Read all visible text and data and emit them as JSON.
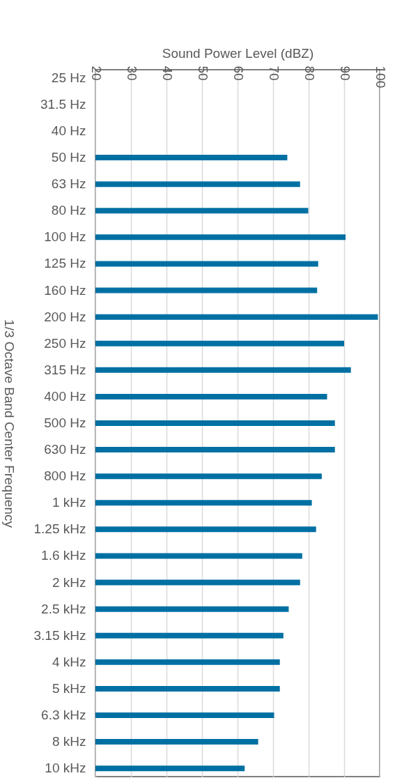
{
  "chart_data": {
    "type": "bar",
    "orientation": "horizontal",
    "xlabel": "Sound Power Level (dBZ)",
    "ylabel": "1/3 Octave Band Center Frequency",
    "categories": [
      "25 Hz",
      "31.5 Hz",
      "40 Hz",
      "50 Hz",
      "63 Hz",
      "80 Hz",
      "100 Hz",
      "125 Hz",
      "160 Hz",
      "200 Hz",
      "250 Hz",
      "315 Hz",
      "400 Hz",
      "500 Hz",
      "630 Hz",
      "800 Hz",
      "1 kHz",
      "1.25 kHz",
      "1.6 kHz",
      "2 kHz",
      "2.5 kHz",
      "3.15 kHz",
      "4 kHz",
      "5 kHz",
      "6.3 kHz",
      "8 kHz",
      "10 kHz"
    ],
    "values": [
      null,
      null,
      null,
      74.0,
      77.6,
      79.9,
      90.4,
      82.7,
      82.4,
      99.5,
      90.0,
      91.9,
      85.2,
      87.4,
      87.4,
      83.7,
      80.9,
      82.1,
      78.2,
      77.6,
      74.4,
      72.9,
      71.9,
      71.9,
      70.3,
      65.8,
      62.0
    ],
    "color": "#0070a3",
    "xlim": [
      20,
      100
    ],
    "xticks": [
      20,
      30,
      40,
      50,
      60,
      70,
      80,
      90,
      100
    ],
    "grid": "x"
  }
}
